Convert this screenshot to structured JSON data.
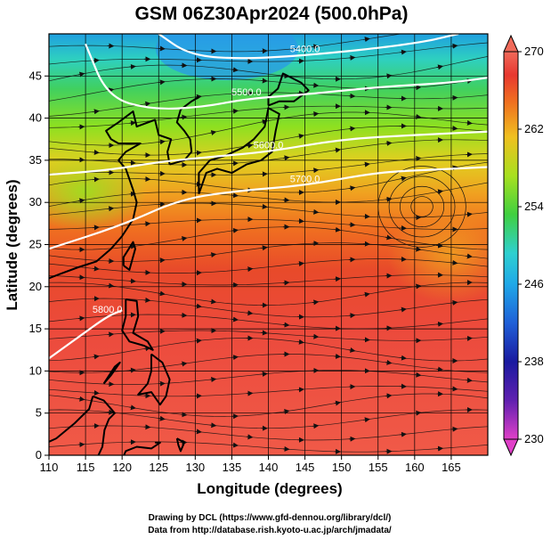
{
  "chart_data": {
    "type": "heatmap",
    "title": "GSM 06Z30Apr2024 (500.0hPa)",
    "xlabel": "Longitude (degrees)",
    "ylabel": "Latitude  (degrees)",
    "xlim": [
      110,
      170
    ],
    "ylim": [
      0,
      50
    ],
    "xticks": [
      110,
      115,
      120,
      125,
      130,
      135,
      140,
      145,
      150,
      155,
      160,
      165
    ],
    "yticks": [
      0,
      5,
      10,
      15,
      20,
      25,
      30,
      35,
      40,
      45
    ],
    "colorbar": {
      "range": [
        230,
        270
      ],
      "ticks": [
        230,
        238,
        246,
        254,
        262,
        270
      ],
      "colors": [
        "#e040c8",
        "#1a1aa0",
        "#1f8fe0",
        "#2ed0d0",
        "#46d046",
        "#a8e020",
        "#f0c020",
        "#f07020",
        "#e83830",
        "#f06a5a"
      ]
    },
    "contours": [
      {
        "label": "5700.0",
        "points": [
          [
            110,
            24.5
          ],
          [
            120,
            27.3
          ],
          [
            128,
            30.4
          ],
          [
            136,
            31.4
          ],
          [
            145,
            32.0
          ],
          [
            155,
            33.6
          ],
          [
            163,
            33.9
          ],
          [
            170,
            34.2
          ]
        ]
      },
      {
        "label": "5600.0",
        "points": [
          [
            110,
            33.3
          ],
          [
            118,
            33.8
          ],
          [
            125,
            34.8
          ],
          [
            132,
            35.4
          ],
          [
            140,
            36.0
          ],
          [
            150,
            37.5
          ],
          [
            160,
            38.0
          ],
          [
            170,
            38.4
          ]
        ]
      },
      {
        "label": "5500.0",
        "points": [
          [
            115,
            48.8
          ],
          [
            118,
            42.5
          ],
          [
            124,
            41.0
          ],
          [
            131,
            41.3
          ],
          [
            137,
            42.3
          ],
          [
            145,
            42.8
          ],
          [
            155,
            43.7
          ],
          [
            165,
            44.2
          ],
          [
            170,
            44.8
          ]
        ]
      },
      {
        "label": "5400.0",
        "points": [
          [
            125,
            50.0
          ],
          [
            129,
            47.6
          ],
          [
            135,
            47.0
          ],
          [
            145,
            47.4
          ],
          [
            160,
            48.8
          ],
          [
            166,
            50.0
          ]
        ]
      },
      {
        "label": "5800.0",
        "points": [
          [
            110,
            11.5
          ],
          [
            114,
            14.0
          ],
          [
            118,
            16.5
          ],
          [
            120,
            17.2
          ]
        ]
      }
    ],
    "credits": [
      "Drawing by DCL (https://www.gfd-dennou.org/library/dcl/)",
      "Data from http://database.rish.kyoto-u.ac.jp/arch/jmadata/"
    ]
  }
}
